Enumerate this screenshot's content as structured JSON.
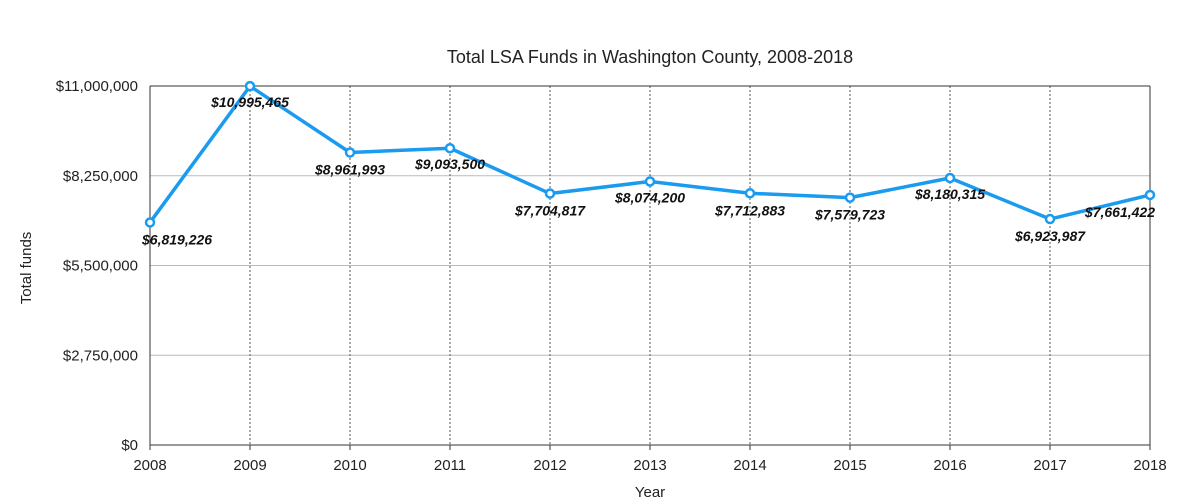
{
  "chart_data": {
    "type": "line",
    "title": "Total LSA Funds in Washington County, 2008-2018",
    "xlabel": "Year",
    "ylabel": "Total funds",
    "categories": [
      "2008",
      "2009",
      "2010",
      "2011",
      "2012",
      "2013",
      "2014",
      "2015",
      "2016",
      "2017",
      "2018"
    ],
    "series": [
      {
        "values": [
          6819226,
          10995465,
          8961993,
          9093500,
          7704817,
          8074200,
          7712883,
          7579723,
          8180315,
          6923987,
          7661422
        ],
        "data_labels": [
          "$6,819,226",
          "$10,995,465",
          "$8,961,993",
          "$9,093,500",
          "$7,704,817",
          "$8,074,200",
          "$7,712,883",
          "$7,579,723",
          "$8,180,315",
          "$6,923,987",
          "$7,661,422"
        ]
      }
    ],
    "ylim": [
      0,
      11000000
    ],
    "y_ticks": [
      0,
      2750000,
      5500000,
      8250000,
      11000000
    ],
    "y_tick_labels": [
      "$0",
      "$2,750,000",
      "$5,500,000",
      "$8,250,000",
      "$11,000,000"
    ],
    "horizontal_grid": true,
    "vertical_grid": "dotted",
    "line_color": "#1a9bf0",
    "grid_color": "#bbbbbb",
    "vgrid_color": "#555555"
  }
}
